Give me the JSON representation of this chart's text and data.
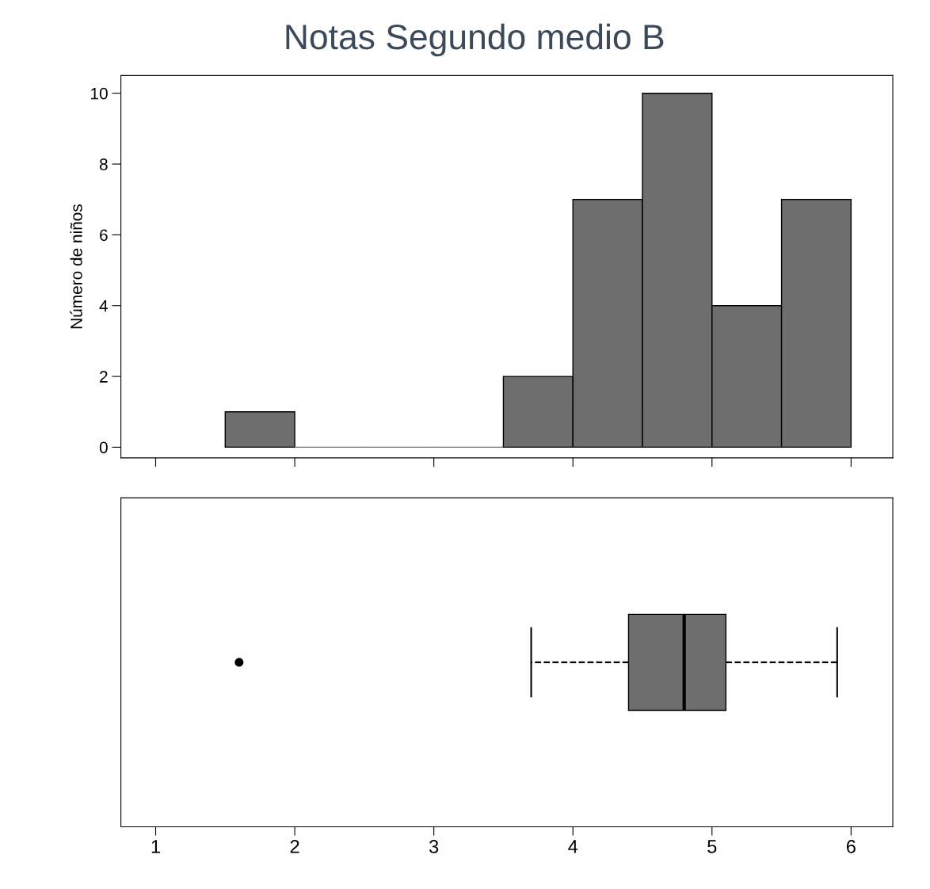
{
  "chart_data": [
    {
      "type": "histogram",
      "title": "Notas Segundo medio B",
      "ylabel": "Número de niños",
      "bins": [
        1.5,
        2,
        2.5,
        3,
        3.5,
        4,
        4.5,
        5,
        5.5,
        6
      ],
      "values": [
        1,
        0,
        0,
        0,
        2,
        7,
        10,
        4,
        7
      ],
      "color": "#6e6e6e",
      "xlim": [
        0.75,
        6.3
      ],
      "xticks": [
        {
          "value": 1,
          "label": null
        },
        {
          "value": 2,
          "label": null
        },
        {
          "value": 3,
          "label": null
        },
        {
          "value": 4,
          "label": null
        },
        {
          "value": 5,
          "label": null
        },
        {
          "value": 6,
          "label": null
        }
      ],
      "ylim": [
        -0.3,
        10.5
      ],
      "yticks": [
        0,
        2,
        4,
        6,
        8,
        10
      ],
      "tick_labels": "y",
      "grid": false,
      "legend": false
    },
    {
      "type": "box",
      "orientation": "horizontal",
      "categories": [
        null
      ],
      "boxes": [
        {
          "low": 3.7,
          "q1": 4.4,
          "median": 4.8,
          "q3": 5.1,
          "high": 5.9,
          "outliers": [
            1.6
          ]
        }
      ],
      "color": "#6e6e6e",
      "line_style": "dashed",
      "xlim": [
        0.75,
        6.3
      ],
      "xticks": [
        1,
        2,
        3,
        4,
        5,
        6
      ],
      "tick_labels": "x",
      "grid": false,
      "legend": false
    }
  ]
}
